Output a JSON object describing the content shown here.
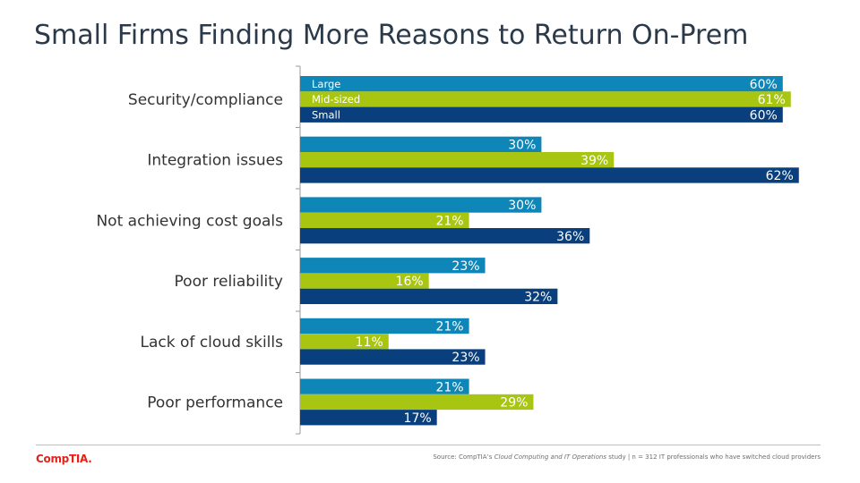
{
  "chart_data": {
    "type": "bar",
    "orientation": "horizontal",
    "title": "Small Firms Finding More Reasons to Return On-Prem",
    "categories": [
      "Security/compliance",
      "Integration issues",
      "Not achieving cost goals",
      "Poor reliability",
      "Lack of cloud skills",
      "Poor performance"
    ],
    "series": [
      {
        "name": "Large",
        "color": "#0e86b8",
        "values": [
          60,
          30,
          30,
          23,
          21,
          21
        ]
      },
      {
        "name": "Mid-sized",
        "color": "#a8c512",
        "values": [
          61,
          39,
          21,
          16,
          11,
          29
        ]
      },
      {
        "name": "Small",
        "color": "#083f7c",
        "values": [
          60,
          62,
          36,
          32,
          23,
          17
        ]
      }
    ],
    "value_suffix": "%",
    "legend": "inside first category bars"
  },
  "footer": {
    "logo": "CompTIA.",
    "source_prefix": "Source: CompTIA’s ",
    "source_study": "Cloud Computing and IT Operations",
    "source_suffix": " study | n = 312 IT professionals who have switched cloud providers"
  }
}
